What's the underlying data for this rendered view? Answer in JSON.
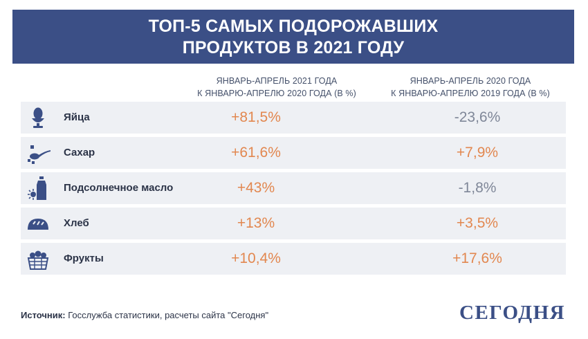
{
  "title": {
    "line1": "ТОП-5 САМЫХ ПОДОРОЖАВШИХ",
    "line2": "ПРОДУКТОВ В 2021 ГОДУ"
  },
  "columns": [
    {
      "line1": "ЯНВАРЬ-АПРЕЛЬ 2021 ГОДА",
      "line2": "К ЯНВАРЮ-АПРЕЛЮ 2020 ГОДА (В %)"
    },
    {
      "line1": "ЯНВАРЬ-АПРЕЛЬ 2020 ГОДА",
      "line2": "К ЯНВАРЮ-АПРЕЛЮ 2019 ГОДА (В %)"
    }
  ],
  "rows": [
    {
      "label": "Яйца",
      "icon": "egg-icon",
      "v1": "+81,5%",
      "v2": "-23,6%"
    },
    {
      "label": "Сахар",
      "icon": "sugar-spoon-icon",
      "v1": "+61,6%",
      "v2": "+7,9%"
    },
    {
      "label": "Подсолнечное масло",
      "icon": "oil-bottle-icon",
      "v1": "+43%",
      "v2": "-1,8%"
    },
    {
      "label": "Хлеб",
      "icon": "bread-icon",
      "v1": "+13%",
      "v2": "+3,5%"
    },
    {
      "label": "Фрукты",
      "icon": "fruit-basket-icon",
      "v1": "+10,4%",
      "v2": "+17,6%"
    }
  ],
  "source": {
    "prefix": "Источник:",
    "text": "Госслужба статистики, расчеты сайта \"Сегодня\""
  },
  "brand": "СЕГОДНЯ",
  "colors": {
    "header_bg": "#3b4f86",
    "positive": "#e2874f",
    "negative": "#7f8798",
    "row_bg": "#eef0f4"
  },
  "chart_data": {
    "type": "table",
    "title": "ТОП-5 САМЫХ ПОДОРОЖАВШИХ ПРОДУКТОВ В 2021 ГОДУ",
    "categories": [
      "Яйца",
      "Сахар",
      "Подсолнечное масло",
      "Хлеб",
      "Фрукты"
    ],
    "series": [
      {
        "name": "ЯНВАРЬ-АПРЕЛЬ 2021 ГОДА К ЯНВАРЮ-АПРЕЛЮ 2020 ГОДА (В %)",
        "values": [
          81.5,
          61.6,
          43,
          13,
          10.4
        ]
      },
      {
        "name": "ЯНВАРЬ-АПРЕЛЬ 2020 ГОДА К ЯНВАРЮ-АПРЕЛЮ 2019 ГОДА (В %)",
        "values": [
          -23.6,
          7.9,
          -1.8,
          3.5,
          17.6
        ]
      }
    ]
  }
}
